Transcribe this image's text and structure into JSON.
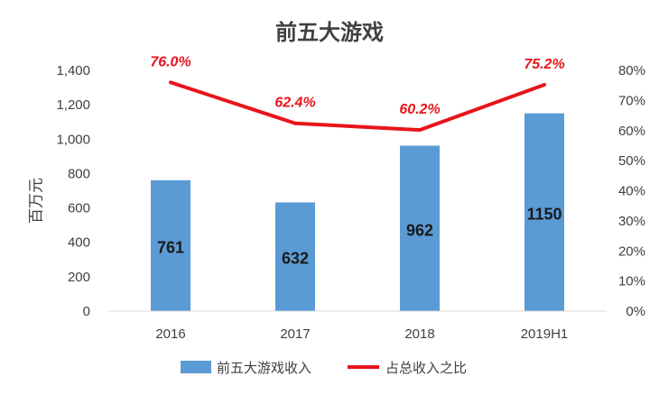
{
  "chart_data": {
    "type": "bar+line",
    "title": "前五大游戏",
    "categories": [
      "2016",
      "2017",
      "2018",
      "2019H1"
    ],
    "ylabel": "百万元",
    "ylim": [
      0,
      1400
    ],
    "yticks": [
      "0",
      "200",
      "400",
      "600",
      "800",
      "1,000",
      "1,200",
      "1,400"
    ],
    "y2lim": [
      0,
      80
    ],
    "y2ticks": [
      "0%",
      "10%",
      "20%",
      "30%",
      "40%",
      "50%",
      "60%",
      "70%",
      "80%"
    ],
    "series": [
      {
        "name": "前五大游戏收入",
        "type": "bar",
        "axis": "left",
        "values": [
          761,
          632,
          962,
          1150
        ],
        "labels": [
          "761",
          "632",
          "962",
          "1150"
        ],
        "color": "#5B9BD5"
      },
      {
        "name": "占总收入之比",
        "type": "line",
        "axis": "right",
        "values": [
          76.0,
          62.4,
          60.2,
          75.2
        ],
        "labels": [
          "76.0%",
          "62.4%",
          "60.2%",
          "75.2%"
        ],
        "color": "#E8141B"
      }
    ],
    "grid": false,
    "legend": "bottom"
  }
}
